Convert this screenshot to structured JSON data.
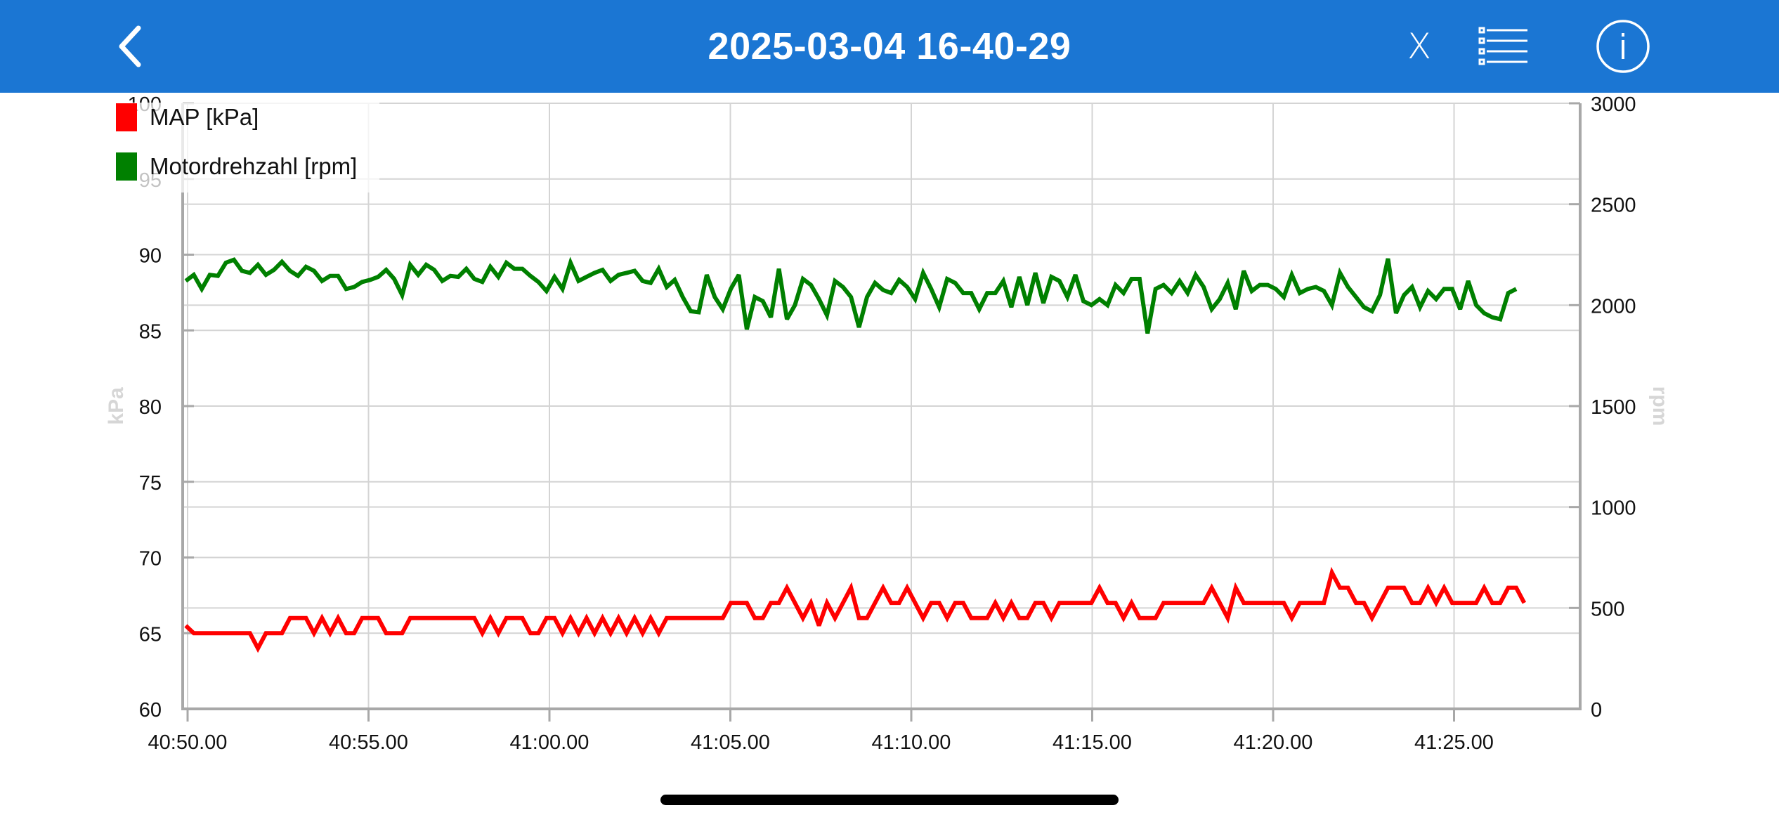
{
  "header": {
    "title": "2025-03-04 16-40-29",
    "back_icon": "chevron-left-icon",
    "close_label": "X",
    "list_icon": "checklist-icon",
    "info_icon": "info-circle-icon",
    "background_color": "#1B76D3"
  },
  "legend": [
    {
      "label": "MAP [kPa]",
      "color": "#FF0000"
    },
    {
      "label": "Motordrehzahl [rpm]",
      "color": "#008000"
    }
  ],
  "chart_data": {
    "type": "line",
    "title": "",
    "xlabel": "",
    "ylabel_left": "kPa",
    "ylabel_right": "rpm",
    "x_ticks": [
      "40:50.00",
      "40:55.00",
      "41:00.00",
      "41:05.00",
      "41:10.00",
      "41:15.00",
      "41:20.00",
      "41:25.00"
    ],
    "y_left_ticks": [
      "60",
      "65",
      "70",
      "75",
      "80",
      "85",
      "90",
      "95",
      "100"
    ],
    "y_right_ticks": [
      "0",
      "500",
      "1000",
      "1500",
      "2000",
      "2500",
      "3000"
    ],
    "ylim_left": [
      60,
      100
    ],
    "ylim_right": [
      0,
      3000
    ],
    "x_start_seconds": -0.05,
    "x_step_seconds": 0.2215,
    "grid": true,
    "legend_position": "top-left",
    "series": [
      {
        "name": "MAP [kPa]",
        "axis": "left",
        "color": "#FF0000",
        "values": [
          65.5,
          65,
          65,
          65,
          65,
          65,
          65,
          65,
          65,
          64,
          65,
          65,
          65,
          66,
          66,
          66,
          65,
          66,
          65,
          66,
          65,
          65,
          66,
          66,
          66,
          65,
          65,
          65,
          66,
          66,
          66,
          66,
          66,
          66,
          66,
          66,
          66,
          65,
          66,
          65,
          66,
          66,
          66,
          65,
          65,
          66,
          66,
          65,
          66,
          65,
          66,
          65,
          66,
          65,
          66,
          65,
          66,
          65,
          66,
          65,
          66,
          66,
          66,
          66,
          66,
          66,
          66,
          66,
          67,
          67,
          67,
          66,
          66,
          67,
          67,
          68,
          67,
          66,
          67,
          65.5,
          67,
          66,
          67,
          68,
          66,
          66,
          67,
          68,
          67,
          67,
          68,
          67,
          66,
          67,
          67,
          66,
          67,
          67,
          66,
          66,
          66,
          67,
          66,
          67,
          66,
          66,
          67,
          67,
          66,
          67,
          67,
          67,
          67,
          67,
          68,
          67,
          67,
          66,
          67,
          66,
          66,
          66,
          67,
          67,
          67,
          67,
          67,
          67,
          68,
          67,
          66,
          68,
          67,
          67,
          67,
          67,
          67,
          67,
          66,
          67,
          67,
          67,
          67,
          69,
          68,
          68,
          67,
          67,
          66,
          67,
          68,
          68,
          68,
          67,
          67,
          68,
          67,
          68,
          67,
          67,
          67,
          67,
          68,
          67,
          67,
          68,
          68,
          67
        ]
      },
      {
        "name": "Motordrehzahl [rpm]",
        "axis": "right",
        "color": "#008000",
        "values": [
          2120,
          2150,
          2080,
          2150,
          2145,
          2210,
          2225,
          2170,
          2160,
          2200,
          2150,
          2175,
          2215,
          2170,
          2145,
          2190,
          2170,
          2120,
          2145,
          2145,
          2080,
          2090,
          2115,
          2125,
          2140,
          2175,
          2130,
          2050,
          2200,
          2150,
          2200,
          2175,
          2120,
          2145,
          2140,
          2180,
          2130,
          2115,
          2190,
          2140,
          2210,
          2180,
          2180,
          2145,
          2115,
          2070,
          2140,
          2080,
          2210,
          2120,
          2140,
          2160,
          2175,
          2120,
          2150,
          2160,
          2170,
          2120,
          2110,
          2180,
          2090,
          2125,
          2040,
          1970,
          1965,
          2150,
          2040,
          1980,
          2080,
          2150,
          1880,
          2040,
          2020,
          1940,
          2180,
          1930,
          2000,
          2130,
          2100,
          2030,
          1950,
          2120,
          2090,
          2040,
          1890,
          2040,
          2110,
          2075,
          2060,
          2125,
          2090,
          2030,
          2160,
          2080,
          1990,
          2130,
          2110,
          2060,
          2060,
          1980,
          2060,
          2060,
          2120,
          1990,
          2140,
          2000,
          2160,
          2010,
          2140,
          2120,
          2040,
          2150,
          2020,
          2000,
          2030,
          2000,
          2100,
          2060,
          2130,
          2130,
          1860,
          2080,
          2100,
          2060,
          2120,
          2060,
          2150,
          2090,
          1980,
          2030,
          2110,
          1980,
          2170,
          2070,
          2100,
          2100,
          2080,
          2040,
          2150,
          2060,
          2080,
          2090,
          2070,
          2000,
          2160,
          2090,
          2040,
          1990,
          1970,
          2050,
          2230,
          1960,
          2050,
          2090,
          1990,
          2070,
          2030,
          2080,
          2080,
          1980,
          2120,
          2000,
          1960,
          1940,
          1930,
          2060,
          2080
        ]
      }
    ]
  },
  "colors": {
    "grid": "#D4D4D4",
    "axis": "#A8A8A8",
    "tick_label": "#111111",
    "axis_title": "#D6D6D6"
  }
}
